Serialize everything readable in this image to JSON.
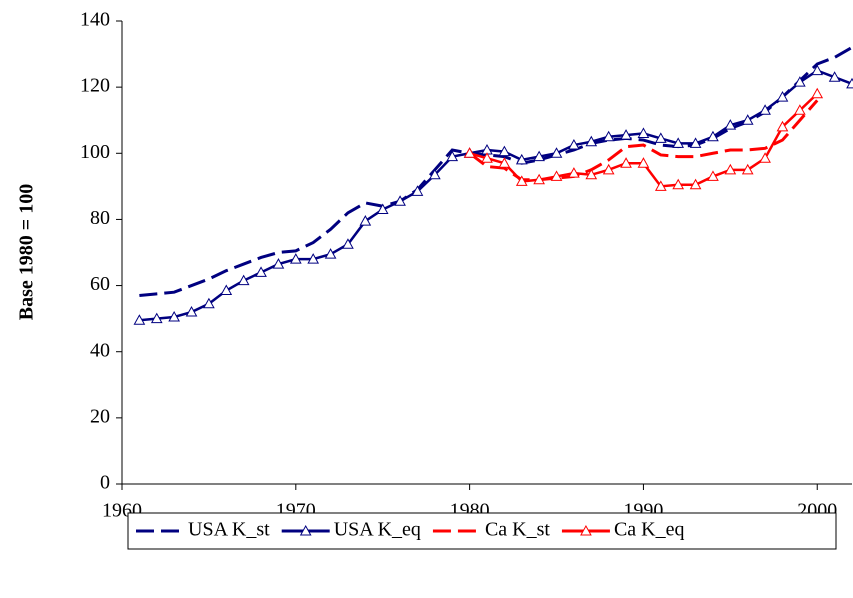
{
  "chart_data": {
    "type": "line",
    "y_label": "Base 1980 = 100",
    "xlim": [
      1960,
      2002
    ],
    "xticks": [
      1960,
      1970,
      1980,
      1990,
      2000
    ],
    "ylim": [
      0,
      140
    ],
    "yticks": [
      0,
      20,
      40,
      60,
      80,
      100,
      120,
      140
    ],
    "legend": "bottom",
    "series": [
      {
        "name": "USA K_st",
        "color": "#000080",
        "dashed": true,
        "marker": "none",
        "x": [
          1961,
          1962,
          1963,
          1964,
          1965,
          1966,
          1967,
          1968,
          1969,
          1970,
          1971,
          1972,
          1973,
          1974,
          1975,
          1976,
          1977,
          1978,
          1979,
          1980,
          1981,
          1982,
          1983,
          1984,
          1985,
          1986,
          1987,
          1988,
          1989,
          1990,
          1991,
          1992,
          1993,
          1994,
          1995,
          1996,
          1997,
          1998,
          1999,
          2000,
          2001,
          2002
        ],
        "values": [
          57,
          57.5,
          58,
          60,
          62,
          64.5,
          66.5,
          68.5,
          70,
          70.5,
          73,
          77,
          82,
          85,
          84,
          85.5,
          89,
          95,
          101,
          100,
          99.5,
          99,
          97,
          98,
          99.5,
          101,
          103,
          104,
          104.5,
          104,
          102.5,
          102,
          102.5,
          104.5,
          107.5,
          109.5,
          112.5,
          117,
          122,
          127,
          129,
          132
        ]
      },
      {
        "name": "USA K_eq",
        "color": "#000080",
        "dashed": false,
        "marker": "triangle",
        "x": [
          1961,
          1962,
          1963,
          1964,
          1965,
          1966,
          1967,
          1968,
          1969,
          1970,
          1971,
          1972,
          1973,
          1974,
          1975,
          1976,
          1977,
          1978,
          1979,
          1980,
          1981,
          1982,
          1983,
          1984,
          1985,
          1986,
          1987,
          1988,
          1989,
          1990,
          1991,
          1992,
          1993,
          1994,
          1995,
          1996,
          1997,
          1998,
          1999,
          2000,
          2001,
          2002
        ],
        "values": [
          49.5,
          50,
          50.5,
          52,
          54.5,
          58.5,
          61.5,
          64,
          66.5,
          68,
          68,
          69.5,
          72.5,
          79.5,
          83,
          85.5,
          88.5,
          93.5,
          99,
          100,
          101,
          100.5,
          98,
          99,
          100,
          102.5,
          103.5,
          105,
          105.5,
          106,
          104.5,
          103,
          103,
          105,
          108.5,
          110,
          113,
          117,
          121.5,
          125,
          123,
          121
        ]
      },
      {
        "name": "Ca K_st",
        "color": "#ff0000",
        "dashed": true,
        "marker": "none",
        "x": [
          1980,
          1981,
          1982,
          1983,
          1984,
          1985,
          1986,
          1987,
          1988,
          1989,
          1990,
          1991,
          1992,
          1993,
          1994,
          1995,
          1996,
          1997,
          1998,
          1999,
          2000
        ],
        "values": [
          100,
          96,
          95.5,
          92,
          92,
          92.5,
          93,
          95,
          98,
          102,
          102.5,
          99.5,
          99,
          99,
          100,
          101,
          101,
          101.5,
          104,
          110,
          116
        ]
      },
      {
        "name": "Ca K_eq",
        "color": "#ff0000",
        "dashed": false,
        "marker": "triangle",
        "x": [
          1980,
          1981,
          1982,
          1983,
          1984,
          1985,
          1986,
          1987,
          1988,
          1989,
          1990,
          1991,
          1992,
          1993,
          1994,
          1995,
          1996,
          1997,
          1998,
          1999,
          2000
        ],
        "values": [
          100,
          98.5,
          97,
          91.5,
          92,
          93,
          94,
          93.5,
          95,
          97,
          97,
          90,
          90.5,
          90.5,
          93,
          95,
          95,
          98.5,
          108,
          113,
          118
        ]
      }
    ]
  }
}
